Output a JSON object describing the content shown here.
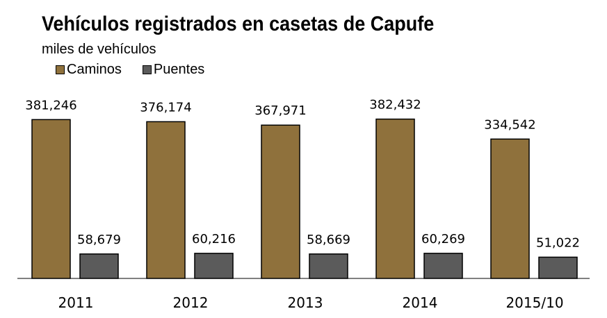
{
  "title": "Vehículos registrados en casetas de Capufe",
  "subtitle": "miles de vehículos",
  "legend": [
    "Caminos",
    "Puentes"
  ],
  "colors": {
    "caminos": "#8f713c",
    "puentes": "#5b5b5b",
    "outline": "#000000"
  },
  "chart_data": {
    "type": "bar",
    "title": "Vehículos registrados en casetas de Capufe",
    "subtitle": "miles de vehículos",
    "categories": [
      "2011",
      "2012",
      "2013",
      "2014",
      "2015/10"
    ],
    "series": [
      {
        "name": "Caminos",
        "values": [
          381246,
          376174,
          367971,
          382432,
          334542
        ],
        "labels": [
          "381,246",
          "376,174",
          "367,971",
          "382,432",
          "334,542"
        ]
      },
      {
        "name": "Puentes",
        "values": [
          58679,
          60216,
          58669,
          60269,
          51022
        ],
        "labels": [
          "58,679",
          "60,216",
          "58,669",
          "60,269",
          "51,022"
        ]
      }
    ],
    "ylim": [
      0,
      400000
    ],
    "grid": false,
    "legend_position": "top-left"
  }
}
